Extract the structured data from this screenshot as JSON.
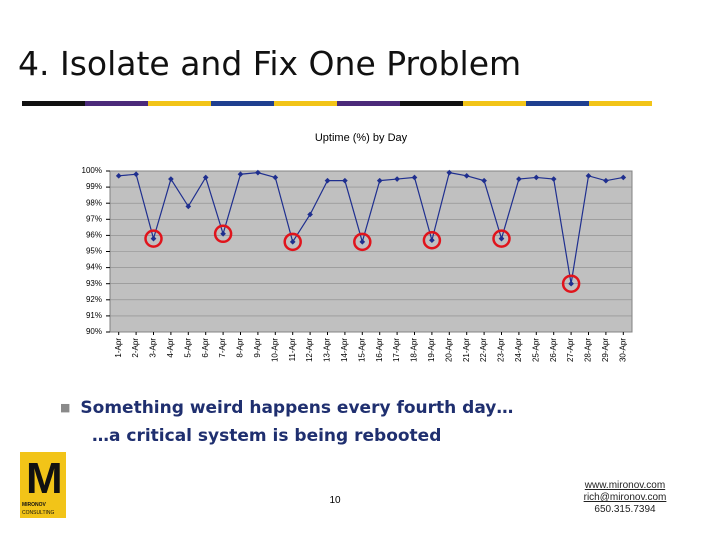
{
  "slide": {
    "title": "4. Isolate and Fix One Problem",
    "bullets": [
      "Something weird happens every fourth day…",
      "…a critical system is being rebooted"
    ],
    "page_number": "10",
    "logo": {
      "letter": "M",
      "name": "MIRONOV",
      "sub": "CONSULTING"
    },
    "contact": [
      "www.mironov.com",
      "rich@mironov.com",
      "650.315.7394"
    ]
  },
  "chart_data": {
    "type": "line",
    "title": "Uptime (%) by Day",
    "categories": [
      "1-Apr",
      "2-Apr",
      "3-Apr",
      "4-Apr",
      "5-Apr",
      "6-Apr",
      "7-Apr",
      "8-Apr",
      "9-Apr",
      "10-Apr",
      "11-Apr",
      "12-Apr",
      "13-Apr",
      "14-Apr",
      "15-Apr",
      "16-Apr",
      "17-Apr",
      "18-Apr",
      "19-Apr",
      "20-Apr",
      "21-Apr",
      "22-Apr",
      "23-Apr",
      "24-Apr",
      "25-Apr",
      "26-Apr",
      "27-Apr",
      "28-Apr",
      "29-Apr",
      "30-Apr"
    ],
    "values": [
      99.7,
      99.8,
      95.8,
      99.5,
      97.8,
      99.6,
      96.1,
      99.8,
      99.9,
      99.6,
      95.6,
      97.3,
      99.4,
      99.4,
      95.6,
      99.4,
      99.5,
      99.6,
      95.7,
      99.9,
      99.7,
      99.4,
      95.8,
      99.5,
      99.6,
      99.5,
      93.0,
      99.7,
      99.4,
      99.6
    ],
    "color": "#1f2f8f",
    "highlight_color": "#e0141c",
    "ylim": [
      90,
      100
    ],
    "yticks": [
      {
        "value": 90,
        "label": "90%"
      },
      {
        "value": 91,
        "label": "91%"
      },
      {
        "value": 92,
        "label": "92%"
      },
      {
        "value": 93,
        "label": "93%"
      },
      {
        "value": 94,
        "label": "94%"
      },
      {
        "value": 95,
        "label": "95%"
      },
      {
        "value": 96,
        "label": "96%"
      },
      {
        "value": 97,
        "label": "97%"
      },
      {
        "value": 98,
        "label": "98%"
      },
      {
        "value": 99,
        "label": "99%"
      },
      {
        "value": 100,
        "label": "100%"
      }
    ],
    "grid": true
  }
}
